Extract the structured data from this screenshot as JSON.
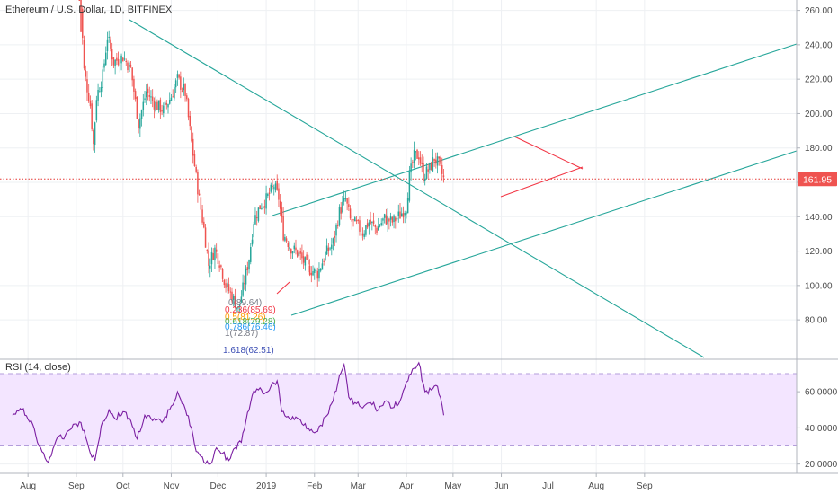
{
  "header": {
    "title": "Ethereum / U.S. Dollar, 1D, BITFINEX"
  },
  "rsi_panel": {
    "title": "RSI (14, close)"
  },
  "price_tag": {
    "value": "161.95"
  },
  "colors": {
    "up": "#26a69a",
    "down": "#ef5350",
    "trend_green": "#26a69a",
    "triangle_red": "#f23645",
    "rsi_line": "#7b1fa2",
    "rsi_band": "#f3e5ff"
  },
  "chart_data": [
    {
      "type": "candlestick",
      "title": "Ethereum / U.S. Dollar, 1D, BITFINEX",
      "x_ticks": [
        "Aug",
        "Sep",
        "Oct",
        "Nov",
        "Dec",
        "2019",
        "Feb",
        "Mar",
        "Apr",
        "May",
        "Jun",
        "Jul",
        "Aug",
        "Sep"
      ],
      "y_ticks": [
        "260.00",
        "240.00",
        "220.00",
        "200.00",
        "180.00",
        "160.00",
        "140.00",
        "120.00",
        "100.00",
        "80.00"
      ],
      "ylim": [
        60,
        268
      ],
      "grid": true,
      "last_price": 161.95,
      "close_path": [
        [
          "2018-09-03",
          280
        ],
        [
          "2018-09-06",
          225
        ],
        [
          "2018-09-10",
          205
        ],
        [
          "2018-09-12",
          182
        ],
        [
          "2018-09-14",
          210
        ],
        [
          "2018-09-18",
          222
        ],
        [
          "2018-09-21",
          245
        ],
        [
          "2018-09-25",
          230
        ],
        [
          "2018-10-01",
          233
        ],
        [
          "2018-10-06",
          226
        ],
        [
          "2018-10-11",
          194
        ],
        [
          "2018-10-16",
          213
        ],
        [
          "2018-10-21",
          206
        ],
        [
          "2018-10-27",
          202
        ],
        [
          "2018-11-01",
          210
        ],
        [
          "2018-11-05",
          220
        ],
        [
          "2018-11-10",
          212
        ],
        [
          "2018-11-14",
          183
        ],
        [
          "2018-11-19",
          150
        ],
        [
          "2018-11-22",
          133
        ],
        [
          "2018-11-25",
          112
        ],
        [
          "2018-11-29",
          121
        ],
        [
          "2018-12-02",
          114
        ],
        [
          "2018-12-06",
          100
        ],
        [
          "2018-12-10",
          94
        ],
        [
          "2018-12-14",
          86
        ],
        [
          "2018-12-17",
          98
        ],
        [
          "2018-12-21",
          116
        ],
        [
          "2018-12-24",
          138
        ],
        [
          "2018-12-28",
          146
        ],
        [
          "2019-01-01",
          150
        ],
        [
          "2019-01-06",
          158
        ],
        [
          "2019-01-09",
          151
        ],
        [
          "2019-01-12",
          130
        ],
        [
          "2019-01-17",
          122
        ],
        [
          "2019-01-22",
          118
        ],
        [
          "2019-01-28",
          110
        ],
        [
          "2019-02-03",
          107
        ],
        [
          "2019-02-08",
          118
        ],
        [
          "2019-02-13",
          125
        ],
        [
          "2019-02-17",
          143
        ],
        [
          "2019-02-21",
          150
        ],
        [
          "2019-02-24",
          138
        ],
        [
          "2019-02-28",
          135
        ],
        [
          "2019-03-04",
          131
        ],
        [
          "2019-03-08",
          137
        ],
        [
          "2019-03-13",
          133
        ],
        [
          "2019-03-18",
          139
        ],
        [
          "2019-03-23",
          137
        ],
        [
          "2019-03-28",
          141
        ],
        [
          "2019-04-01",
          146
        ],
        [
          "2019-04-03",
          163
        ],
        [
          "2019-04-06",
          175
        ],
        [
          "2019-04-09",
          176
        ],
        [
          "2019-04-12",
          164
        ],
        [
          "2019-04-16",
          168
        ],
        [
          "2019-04-19",
          174
        ],
        [
          "2019-04-22",
          170
        ],
        [
          "2019-04-25",
          162
        ]
      ],
      "fibonacci": [
        {
          "label": "0(89.64)",
          "color": "#787b86",
          "value": 89.64
        },
        {
          "label": "0.236(85.69)",
          "color": "#f23645",
          "value": 85.69
        },
        {
          "label": "0.5(81.26)",
          "color": "#ff9800",
          "value": 81.26
        },
        {
          "label": "0.618(79.28)",
          "color": "#4caf50",
          "value": 79.28
        },
        {
          "label": "0.786(76.46)",
          "color": "#2196f3",
          "value": 76.46
        },
        {
          "label": "1(72.87)",
          "color": "#787b86",
          "value": 72.87
        },
        {
          "label": "1.618(62.51)",
          "color": "#3f51b5",
          "value": 62.51
        }
      ]
    },
    {
      "type": "line",
      "title": "RSI (14, close)",
      "y_ticks": [
        "60.0000",
        "40.0000",
        "20.0000"
      ],
      "ylim": [
        12,
        80
      ],
      "bands": [
        30,
        70
      ],
      "values_path": [
        [
          "2018-07-22",
          47
        ],
        [
          "2018-07-28",
          50
        ],
        [
          "2018-08-03",
          44
        ],
        [
          "2018-08-08",
          30
        ],
        [
          "2018-08-14",
          21
        ],
        [
          "2018-08-19",
          33
        ],
        [
          "2018-08-25",
          36
        ],
        [
          "2018-08-30",
          42
        ],
        [
          "2018-09-04",
          43
        ],
        [
          "2018-09-09",
          29
        ],
        [
          "2018-09-13",
          22
        ],
        [
          "2018-09-17",
          41
        ],
        [
          "2018-09-22",
          50
        ],
        [
          "2018-09-26",
          45
        ],
        [
          "2018-10-01",
          49
        ],
        [
          "2018-10-06",
          44
        ],
        [
          "2018-10-10",
          34
        ],
        [
          "2018-10-15",
          47
        ],
        [
          "2018-10-20",
          44
        ],
        [
          "2018-10-26",
          43
        ],
        [
          "2018-10-31",
          50
        ],
        [
          "2018-11-05",
          60
        ],
        [
          "2018-11-09",
          53
        ],
        [
          "2018-11-14",
          40
        ],
        [
          "2018-11-17",
          27
        ],
        [
          "2018-11-22",
          21
        ],
        [
          "2018-11-26",
          20
        ],
        [
          "2018-11-30",
          29
        ],
        [
          "2018-12-04",
          26
        ],
        [
          "2018-12-08",
          22
        ],
        [
          "2018-12-12",
          29
        ],
        [
          "2018-12-16",
          32
        ],
        [
          "2018-12-19",
          44
        ],
        [
          "2018-12-23",
          58
        ],
        [
          "2018-12-27",
          61
        ],
        [
          "2018-12-31",
          59
        ],
        [
          "2019-01-04",
          63
        ],
        [
          "2019-01-08",
          66
        ],
        [
          "2019-01-11",
          49
        ],
        [
          "2019-01-16",
          45
        ],
        [
          "2019-01-22",
          45
        ],
        [
          "2019-01-28",
          40
        ],
        [
          "2019-02-03",
          38
        ],
        [
          "2019-02-08",
          46
        ],
        [
          "2019-02-13",
          55
        ],
        [
          "2019-02-17",
          69
        ],
        [
          "2019-02-20",
          75
        ],
        [
          "2019-02-23",
          57
        ],
        [
          "2019-02-27",
          54
        ],
        [
          "2019-03-04",
          51
        ],
        [
          "2019-03-09",
          54
        ],
        [
          "2019-03-14",
          50
        ],
        [
          "2019-03-19",
          55
        ],
        [
          "2019-03-23",
          51
        ],
        [
          "2019-03-28",
          55
        ],
        [
          "2019-04-02",
          66
        ],
        [
          "2019-04-06",
          73
        ],
        [
          "2019-04-09",
          76
        ],
        [
          "2019-04-13",
          60
        ],
        [
          "2019-04-17",
          61
        ],
        [
          "2019-04-21",
          63
        ],
        [
          "2019-04-25",
          47
        ]
      ]
    }
  ]
}
